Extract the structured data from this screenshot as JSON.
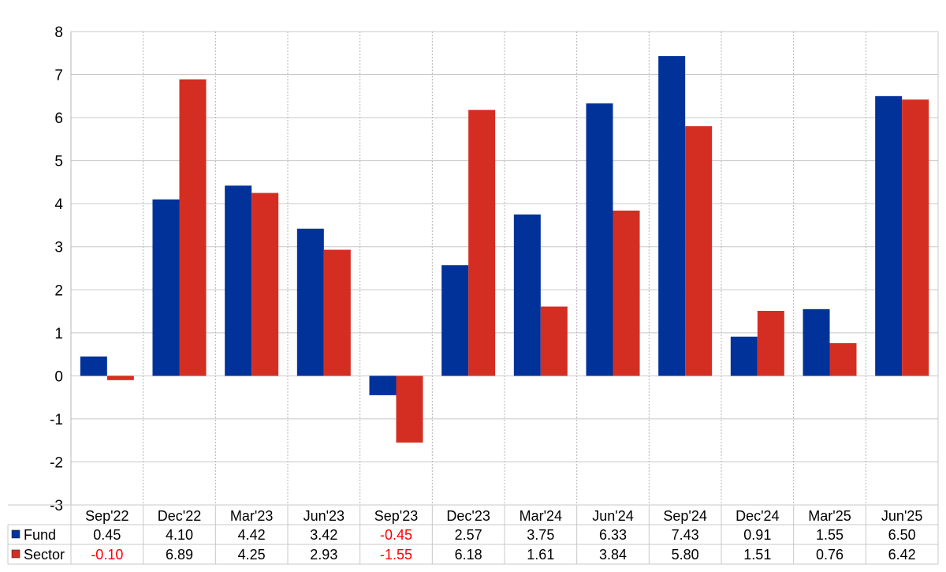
{
  "colors": {
    "fund": "#003299",
    "sector": "#d42e22",
    "negative_text": "#ff0000",
    "text": "#000000",
    "grid": "#c8c8c8"
  },
  "chart_data": {
    "type": "bar",
    "title": "",
    "xlabel": "",
    "ylabel": "",
    "ylim": [
      -3,
      8
    ],
    "yticks": [
      "8",
      "7",
      "6",
      "5",
      "4",
      "3",
      "2",
      "1",
      "0",
      "-1",
      "-2",
      "-3"
    ],
    "grid": true,
    "legend": "data-table",
    "categories": [
      "Sep'22",
      "Dec'22",
      "Mar'23",
      "Jun'23",
      "Sep'23",
      "Dec'23",
      "Mar'24",
      "Jun'24",
      "Sep'24",
      "Dec'24",
      "Mar'25",
      "Jun'25"
    ],
    "series": [
      {
        "name": "Fund",
        "values": [
          0.45,
          4.1,
          4.42,
          3.42,
          -0.45,
          2.57,
          3.75,
          6.33,
          7.43,
          0.91,
          1.55,
          6.5
        ],
        "labels": [
          "0.45",
          "4.10",
          "4.42",
          "3.42",
          "-0.45",
          "2.57",
          "3.75",
          "6.33",
          "7.43",
          "0.91",
          "1.55",
          "6.50"
        ]
      },
      {
        "name": "Sector",
        "values": [
          -0.1,
          6.89,
          4.25,
          2.93,
          -1.55,
          6.18,
          1.61,
          3.84,
          5.8,
          1.51,
          0.76,
          6.42
        ],
        "labels": [
          "-0.10",
          "6.89",
          "4.25",
          "2.93",
          "-1.55",
          "6.18",
          "1.61",
          "3.84",
          "5.80",
          "1.51",
          "0.76",
          "6.42"
        ]
      }
    ]
  }
}
